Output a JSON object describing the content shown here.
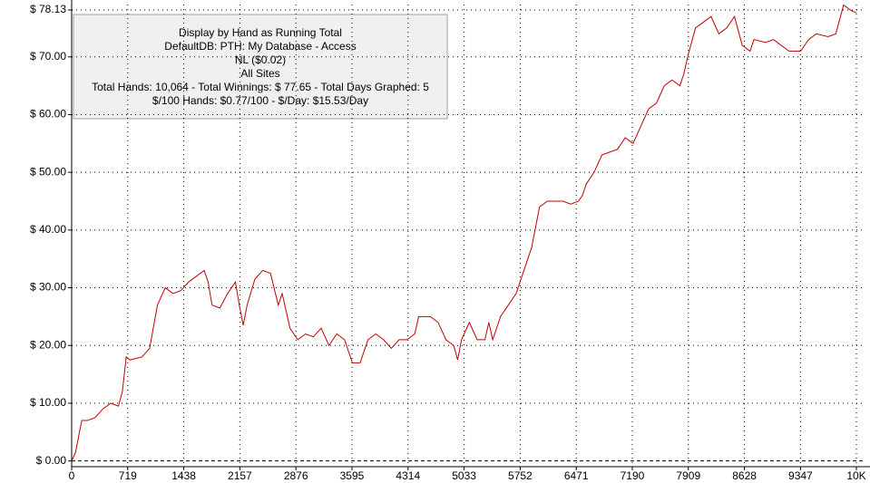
{
  "chart_data": {
    "type": "line",
    "annotations": [
      "Display by Hand as Running Total",
      "DefaultDB: PTH: My Database - Access",
      "NL ($0.02)",
      "All Sites",
      "Total Hands: 10,064 - Total Winnings: $ 77.65 - Total Days Graphed: 5",
      "$/100 Hands: $0.77/100 - $/Day: $15.53/Day"
    ],
    "color": "#c00000",
    "grid": true,
    "xlim": [
      0,
      10064
    ],
    "ylim": [
      -1,
      78.13
    ],
    "xticks": [
      0,
      719,
      1438,
      2157,
      2876,
      3595,
      4314,
      5033,
      5752,
      6471,
      7190,
      7909,
      8628,
      9347,
      {
        "value": 10064,
        "label": "10K"
      }
    ],
    "yticks": [
      {
        "value": 0,
        "label": "$ 0.00"
      },
      {
        "value": 10,
        "label": "$ 10.00"
      },
      {
        "value": 20,
        "label": "$ 20.00"
      },
      {
        "value": 30,
        "label": "$ 30.00"
      },
      {
        "value": 40,
        "label": "$ 40.00"
      },
      {
        "value": 50,
        "label": "$ 50.00"
      },
      {
        "value": 60,
        "label": "$ 60.00"
      },
      {
        "value": 70,
        "label": "$ 70.00"
      },
      {
        "value": 78.13,
        "label": "$ 78.13"
      }
    ],
    "x": [
      0,
      50,
      100,
      130,
      200,
      300,
      400,
      500,
      600,
      650,
      700,
      750,
      900,
      1000,
      1100,
      1200,
      1300,
      1400,
      1500,
      1600,
      1700,
      1750,
      1800,
      1900,
      2000,
      2100,
      2150,
      2200,
      2250,
      2350,
      2450,
      2550,
      2650,
      2700,
      2800,
      2900,
      3000,
      3100,
      3200,
      3300,
      3400,
      3500,
      3600,
      3700,
      3800,
      3900,
      4000,
      4100,
      4200,
      4300,
      4400,
      4450,
      4600,
      4700,
      4800,
      4900,
      4950,
      5000,
      5100,
      5200,
      5300,
      5350,
      5400,
      5500,
      5600,
      5700,
      5800,
      5900,
      6000,
      6100,
      6200,
      6300,
      6400,
      6500,
      6550,
      6600,
      6700,
      6800,
      6900,
      7000,
      7100,
      7200,
      7300,
      7400,
      7500,
      7600,
      7700,
      7800,
      7850,
      7900,
      8000,
      8100,
      8200,
      8300,
      8400,
      8500,
      8600,
      8700,
      8750,
      8900,
      9000,
      9200,
      9350,
      9450,
      9550,
      9700,
      9800,
      9900,
      10000,
      10064
    ],
    "values": [
      0,
      1.5,
      5,
      7,
      7,
      7.5,
      9,
      10,
      9.5,
      12,
      18,
      17.5,
      18,
      19.5,
      27,
      30,
      29,
      29.5,
      31,
      32,
      33,
      31,
      27,
      26.5,
      29,
      31,
      27,
      23.5,
      27,
      31.5,
      33,
      32.5,
      27,
      29,
      23,
      21,
      22,
      21.5,
      23,
      20,
      22,
      21,
      17,
      17,
      21,
      22,
      21,
      19.5,
      21,
      21,
      22,
      25,
      25,
      24,
      21,
      20,
      17.5,
      21,
      24,
      21,
      21,
      24,
      21,
      25,
      27,
      29,
      33,
      37,
      44,
      45,
      45,
      45,
      44.5,
      45,
      46,
      48,
      50,
      53,
      53.5,
      54,
      56,
      55,
      58,
      61,
      62,
      65,
      66,
      65,
      67,
      70,
      75,
      76,
      77,
      74,
      75,
      77,
      72,
      71,
      73,
      72.5,
      73,
      71,
      71,
      73,
      74,
      73.5,
      74,
      79,
      78,
      77.65
    ]
  }
}
